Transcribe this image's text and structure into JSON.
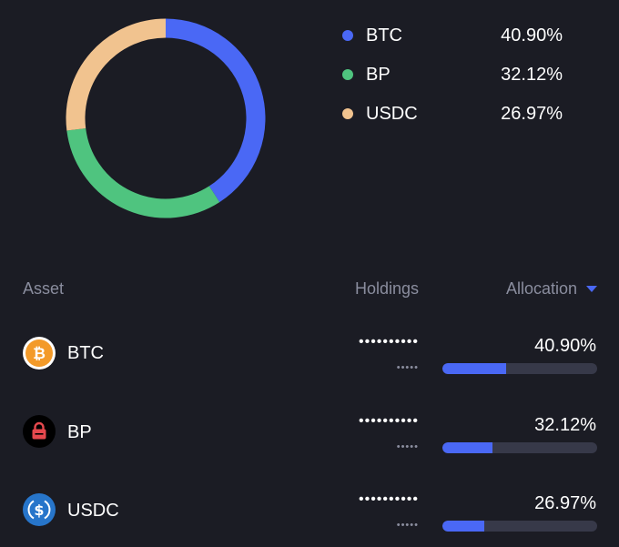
{
  "chart_data": {
    "type": "pie",
    "categories": [
      "BTC",
      "BP",
      "USDC"
    ],
    "values": [
      40.9,
      32.12,
      26.97
    ],
    "colors": [
      "#4a68f5",
      "#4fc47f",
      "#f1c38f"
    ]
  },
  "legend": [
    {
      "name": "BTC",
      "pct": "40.90%",
      "color": "#4a68f5"
    },
    {
      "name": "BP",
      "pct": "32.12%",
      "color": "#4fc47f"
    },
    {
      "name": "USDC",
      "pct": "26.97%",
      "color": "#f1c38f"
    }
  ],
  "table": {
    "headers": {
      "asset": "Asset",
      "holdings": "Holdings",
      "allocation": "Allocation"
    },
    "rows": [
      {
        "name": "BTC",
        "icon": "bitcoin-icon",
        "masked": "••••••••••",
        "masked_sub": "•••••",
        "pct": "40.90%",
        "fraction": 0.409
      },
      {
        "name": "BP",
        "icon": "bp-lock-icon",
        "masked": "••••••••••",
        "masked_sub": "•••••",
        "pct": "32.12%",
        "fraction": 0.3212
      },
      {
        "name": "USDC",
        "icon": "usdc-icon",
        "masked": "••••••••••",
        "masked_sub": "•••••",
        "pct": "26.97%",
        "fraction": 0.2697
      }
    ]
  }
}
